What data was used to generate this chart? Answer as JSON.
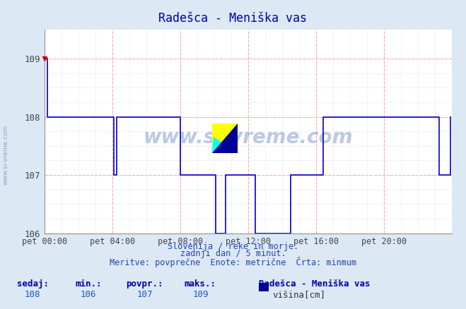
{
  "title": "Radešca - Meniška vas",
  "bg_color": "#dce9f5",
  "plot_bg_color": "#ffffff",
  "line_color": "#0000cc",
  "grid_color_major": "#ffaaaa",
  "grid_color_minor": "#ccccff",
  "xlabel_ticks": [
    "pet 00:00",
    "pet 04:00",
    "pet 08:00",
    "pet 12:00",
    "pet 16:00",
    "pet 20:00"
  ],
  "yticks": [
    106,
    107,
    108,
    109
  ],
  "ymin": 106,
  "ymax": 109.5,
  "xmin": 0,
  "xmax": 288,
  "watermark_text": "www.si-vreme.com",
  "subtitle1": "Slovenija / reke in morje.",
  "subtitle2": "zadnji dan / 5 minut.",
  "subtitle3": "Meritve: povprečne  Enote: metrične  Črta: minmum",
  "footer_labels": [
    "sedaj:",
    "min.:",
    "povpr.:",
    "maks.:"
  ],
  "footer_values": [
    "108",
    "106",
    "107",
    "109"
  ],
  "legend_station": "Radešca - Meniška vas",
  "legend_item": "višina[cm]",
  "legend_color": "#000099",
  "sidewatermark": "www.si-vreme.com",
  "tick_positions_x": [
    0,
    48,
    96,
    144,
    192,
    240
  ],
  "data_x": [
    0,
    1,
    2,
    3,
    4,
    5,
    6,
    7,
    8,
    9,
    10,
    11,
    12,
    13,
    14,
    15,
    16,
    17,
    18,
    19,
    20,
    21,
    22,
    23,
    24,
    25,
    26,
    27,
    28,
    29,
    30,
    31,
    32,
    33,
    34,
    35,
    36,
    37,
    38,
    39,
    40,
    41,
    42,
    43,
    44,
    45,
    46,
    47,
    48,
    49,
    50,
    51,
    52,
    53,
    54,
    55,
    56,
    57,
    58,
    59,
    60,
    61,
    62,
    63,
    64,
    65,
    66,
    67,
    68,
    69,
    70,
    71,
    72,
    73,
    74,
    75,
    76,
    77,
    78,
    79,
    80,
    81,
    82,
    83,
    84,
    85,
    86,
    87,
    88,
    89,
    90,
    91,
    92,
    93,
    94,
    95,
    96,
    97,
    98,
    99,
    100,
    101,
    102,
    103,
    104,
    105,
    106,
    107,
    108,
    109,
    110,
    111,
    112,
    113,
    114,
    115,
    116,
    117,
    118,
    119,
    120,
    121,
    122,
    123,
    124,
    125,
    126,
    127,
    128,
    129,
    130,
    131,
    132,
    133,
    134,
    135,
    136,
    137,
    138,
    139,
    140,
    141,
    142,
    143,
    144,
    145,
    146,
    147,
    148,
    149,
    150,
    151,
    152,
    153,
    154,
    155,
    156,
    157,
    158,
    159,
    160,
    161,
    162,
    163,
    164,
    165,
    166,
    167,
    168,
    169,
    170,
    171,
    172,
    173,
    174,
    175,
    176,
    177,
    178,
    179,
    180,
    181,
    182,
    183,
    184,
    185,
    186,
    187,
    188,
    189,
    190,
    191,
    192,
    193,
    194,
    195,
    196,
    197,
    198,
    199,
    200,
    201,
    202,
    203,
    204,
    205,
    206,
    207,
    208,
    209,
    210,
    211,
    212,
    213,
    214,
    215,
    216,
    217,
    218,
    219,
    220,
    221,
    222,
    223,
    224,
    225,
    226,
    227,
    228,
    229,
    230,
    231,
    232,
    233,
    234,
    235,
    236,
    237,
    238,
    239,
    240,
    241,
    242,
    243,
    244,
    245,
    246,
    247,
    248,
    249,
    250,
    251,
    252,
    253,
    254,
    255,
    256,
    257,
    258,
    259,
    260,
    261,
    262,
    263,
    264,
    265,
    266,
    267,
    268,
    269,
    270,
    271,
    272,
    273,
    274,
    275,
    276,
    277,
    278,
    279,
    280,
    281,
    282,
    283,
    284,
    285,
    286,
    287
  ],
  "data_y": [
    109,
    109,
    108,
    108,
    108,
    108,
    108,
    108,
    108,
    108,
    108,
    108,
    108,
    108,
    108,
    108,
    108,
    108,
    108,
    108,
    108,
    108,
    108,
    108,
    108,
    108,
    108,
    108,
    108,
    108,
    108,
    108,
    108,
    108,
    108,
    108,
    108,
    108,
    108,
    108,
    108,
    108,
    108,
    108,
    108,
    108,
    108,
    108,
    108,
    107,
    107,
    108,
    108,
    108,
    108,
    108,
    108,
    108,
    108,
    108,
    108,
    108,
    108,
    108,
    108,
    108,
    108,
    108,
    108,
    108,
    108,
    108,
    108,
    108,
    108,
    108,
    108,
    108,
    108,
    108,
    108,
    108,
    108,
    108,
    108,
    108,
    108,
    108,
    108,
    108,
    108,
    108,
    108,
    108,
    108,
    108,
    107,
    107,
    107,
    107,
    107,
    107,
    107,
    107,
    107,
    107,
    107,
    107,
    107,
    107,
    107,
    107,
    107,
    107,
    107,
    107,
    107,
    107,
    107,
    107,
    107,
    106,
    106,
    106,
    106,
    106,
    106,
    106,
    107,
    107,
    107,
    107,
    107,
    107,
    107,
    107,
    107,
    107,
    107,
    107,
    107,
    107,
    107,
    107,
    107,
    107,
    107,
    107,
    107,
    106,
    106,
    106,
    106,
    106,
    106,
    106,
    106,
    106,
    106,
    106,
    106,
    106,
    106,
    106,
    106,
    106,
    106,
    106,
    106,
    106,
    106,
    106,
    106,
    106,
    107,
    107,
    107,
    107,
    107,
    107,
    107,
    107,
    107,
    107,
    107,
    107,
    107,
    107,
    107,
    107,
    107,
    107,
    107,
    107,
    107,
    107,
    107,
    108,
    108,
    108,
    108,
    108,
    108,
    108,
    108,
    108,
    108,
    108,
    108,
    108,
    108,
    108,
    108,
    108,
    108,
    108,
    108,
    108,
    108,
    108,
    108,
    108,
    108,
    108,
    108,
    108,
    108,
    108,
    108,
    108,
    108,
    108,
    108,
    108,
    108,
    108,
    108,
    108,
    108,
    108,
    108,
    108,
    108,
    108,
    108,
    108,
    108,
    108,
    108,
    108,
    108,
    108,
    108,
    108,
    108,
    108,
    108,
    108,
    108,
    108,
    108,
    108,
    108,
    108,
    108,
    108,
    108,
    108,
    108,
    108,
    108,
    108,
    108,
    108,
    108,
    108,
    108,
    108,
    108,
    107,
    107,
    107,
    107,
    107,
    107,
    107,
    107,
    108
  ]
}
